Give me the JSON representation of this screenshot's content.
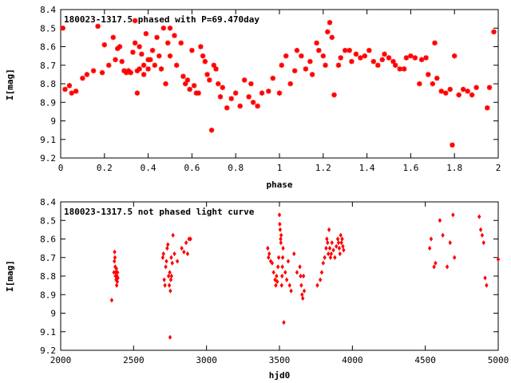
{
  "chart_data": [
    {
      "type": "scatter",
      "title": "180023-1317.5 phased with P=69.470day",
      "xlabel": "phase",
      "ylabel": "I[mag]",
      "xlim": [
        0,
        2
      ],
      "ylim": [
        8.4,
        9.2
      ],
      "y_inverted": true,
      "xticks": [
        0,
        0.2,
        0.4,
        0.6,
        0.8,
        1,
        1.2,
        1.4,
        1.6,
        1.8,
        2
      ],
      "xtick_labels": [
        "0",
        "0.2",
        "0.4",
        "0.6",
        "0.8",
        "1",
        "1.2",
        "1.4",
        "1.6",
        "1.8",
        "2"
      ],
      "yticks": [
        8.4,
        8.5,
        8.6,
        8.7,
        8.8,
        8.9,
        9.0,
        9.1,
        9.2
      ],
      "ytick_labels": [
        "8.4",
        "8.5",
        "8.6",
        "8.7",
        "8.8",
        "8.9",
        "9",
        "9.1",
        "9.2"
      ],
      "grid": false,
      "legend": "none",
      "marker_color": "#ff0000",
      "x": [
        0.01,
        0.02,
        0.04,
        0.05,
        0.07,
        0.1,
        0.12,
        0.15,
        0.17,
        0.19,
        0.2,
        0.22,
        0.24,
        0.25,
        0.26,
        0.27,
        0.28,
        0.29,
        0.3,
        0.31,
        0.32,
        0.33,
        0.34,
        0.34,
        0.35,
        0.35,
        0.36,
        0.36,
        0.37,
        0.38,
        0.38,
        0.39,
        0.4,
        0.4,
        0.41,
        0.42,
        0.43,
        0.44,
        0.45,
        0.46,
        0.47,
        0.48,
        0.49,
        0.5,
        0.5,
        0.52,
        0.53,
        0.55,
        0.56,
        0.57,
        0.58,
        0.59,
        0.6,
        0.61,
        0.62,
        0.63,
        0.64,
        0.65,
        0.66,
        0.67,
        0.68,
        0.69,
        0.7,
        0.71,
        0.72,
        0.73,
        0.74,
        0.76,
        0.78,
        0.8,
        0.82,
        0.84,
        0.86,
        0.87,
        0.88,
        0.9,
        0.92,
        0.95,
        0.97,
        1.0,
        1.01,
        1.03,
        1.05,
        1.07,
        1.08,
        1.1,
        1.12,
        1.14,
        1.15,
        1.17,
        1.18,
        1.2,
        1.21,
        1.22,
        1.23,
        1.24,
        1.25,
        1.27,
        1.28,
        1.3,
        1.32,
        1.33,
        1.35,
        1.37,
        1.39,
        1.41,
        1.43,
        1.45,
        1.47,
        1.48,
        1.5,
        1.52,
        1.53,
        1.55,
        1.57,
        1.58,
        1.6,
        1.62,
        1.64,
        1.65,
        1.67,
        1.68,
        1.7,
        1.71,
        1.72,
        1.74,
        1.76,
        1.78,
        1.79,
        1.8,
        1.82,
        1.84,
        1.86,
        1.88,
        1.9,
        1.95,
        1.96,
        1.98
      ],
      "y": [
        8.5,
        8.83,
        8.81,
        8.85,
        8.84,
        8.77,
        8.75,
        8.73,
        8.49,
        8.74,
        8.59,
        8.7,
        8.55,
        8.67,
        8.61,
        8.6,
        8.68,
        8.73,
        8.74,
        8.73,
        8.74,
        8.63,
        8.46,
        8.58,
        8.73,
        8.85,
        8.72,
        8.6,
        8.64,
        8.7,
        8.75,
        8.53,
        8.67,
        8.72,
        8.67,
        8.62,
        8.7,
        8.55,
        8.65,
        8.72,
        8.5,
        8.8,
        8.58,
        8.5,
        8.65,
        8.54,
        8.7,
        8.58,
        8.76,
        8.8,
        8.78,
        8.83,
        8.62,
        8.81,
        8.85,
        8.85,
        8.6,
        8.65,
        8.68,
        8.75,
        8.78,
        9.05,
        8.7,
        8.72,
        8.8,
        8.87,
        8.82,
        8.93,
        8.88,
        8.85,
        8.92,
        8.78,
        8.87,
        8.8,
        8.9,
        8.92,
        8.85,
        8.84,
        8.77,
        8.85,
        8.7,
        8.65,
        8.8,
        8.73,
        8.62,
        8.65,
        8.72,
        8.68,
        8.75,
        8.58,
        8.62,
        8.65,
        8.7,
        8.52,
        8.47,
        8.55,
        8.86,
        8.7,
        8.66,
        8.62,
        8.62,
        8.68,
        8.64,
        8.66,
        8.65,
        8.62,
        8.68,
        8.7,
        8.67,
        8.64,
        8.66,
        8.68,
        8.7,
        8.72,
        8.72,
        8.66,
        8.65,
        8.66,
        8.8,
        8.67,
        8.66,
        8.75,
        8.8,
        8.58,
        8.77,
        8.84,
        8.85,
        8.83,
        9.13,
        8.65,
        8.86,
        8.83,
        8.84,
        8.86,
        8.82,
        8.93,
        8.82,
        8.52
      ]
    },
    {
      "type": "scatter",
      "title": "180023-1317.5 not phased light curve",
      "xlabel": "hjd0",
      "ylabel": "I[mag]",
      "xlim": [
        2000,
        5000
      ],
      "ylim": [
        8.4,
        9.2
      ],
      "y_inverted": true,
      "xticks": [
        2000,
        2500,
        3000,
        3500,
        4000,
        4500,
        5000
      ],
      "xtick_labels": [
        "2000",
        "2500",
        "3000",
        "3500",
        "4000",
        "4500",
        "5000"
      ],
      "yticks": [
        8.4,
        8.5,
        8.6,
        8.7,
        8.8,
        8.9,
        9.0,
        9.1,
        9.2
      ],
      "ytick_labels": [
        "8.4",
        "8.5",
        "8.6",
        "8.7",
        "8.8",
        "8.9",
        "9",
        "9.1",
        "9.2"
      ],
      "grid": false,
      "legend": "none",
      "marker_color": "#ff0000",
      "x": [
        2350,
        2365,
        2368,
        2370,
        2372,
        2374,
        2376,
        2378,
        2380,
        2382,
        2384,
        2386,
        2388,
        2390,
        2392,
        2700,
        2705,
        2710,
        2715,
        2720,
        2725,
        2730,
        2735,
        2740,
        2745,
        2748,
        2750,
        2752,
        2755,
        2758,
        2760,
        2765,
        2770,
        2780,
        2800,
        2830,
        2845,
        2860,
        2870,
        2880,
        2890,
        3420,
        3425,
        3430,
        3440,
        3450,
        3460,
        3470,
        3475,
        3480,
        3485,
        3490,
        3495,
        3500,
        3502,
        3505,
        3508,
        3510,
        3512,
        3515,
        3518,
        3520,
        3522,
        3525,
        3530,
        3540,
        3550,
        3560,
        3570,
        3580,
        3600,
        3620,
        3640,
        3645,
        3650,
        3655,
        3660,
        3665,
        3670,
        3760,
        3780,
        3790,
        3800,
        3810,
        3820,
        3825,
        3830,
        3835,
        3840,
        3845,
        3850,
        3855,
        3860,
        3870,
        3880,
        3890,
        3900,
        3905,
        3910,
        3915,
        3920,
        3925,
        3930,
        3935,
        3940,
        4530,
        4540,
        4560,
        4570,
        4600,
        4620,
        4650,
        4670,
        4690,
        4700,
        4870,
        4880,
        4890,
        4900,
        4910,
        4920,
        5000
      ],
      "y": [
        8.93,
        8.78,
        8.72,
        8.67,
        8.7,
        8.75,
        8.8,
        8.78,
        8.82,
        8.76,
        8.85,
        8.8,
        8.83,
        8.78,
        8.81,
        8.7,
        8.68,
        8.82,
        8.85,
        8.75,
        8.72,
        8.65,
        8.63,
        8.8,
        8.85,
        8.78,
        9.13,
        8.88,
        8.82,
        8.7,
        8.8,
        8.73,
        8.58,
        8.68,
        8.72,
        8.65,
        8.67,
        8.62,
        8.68,
        8.6,
        8.6,
        8.65,
        8.7,
        8.68,
        8.72,
        8.73,
        8.78,
        8.82,
        8.85,
        8.8,
        8.83,
        8.75,
        8.7,
        8.47,
        8.52,
        8.55,
        8.6,
        8.62,
        8.58,
        8.85,
        8.8,
        8.75,
        8.7,
        8.65,
        9.05,
        8.78,
        8.82,
        8.72,
        8.85,
        8.88,
        8.68,
        8.78,
        8.75,
        8.8,
        8.85,
        8.9,
        8.92,
        8.8,
        8.88,
        8.85,
        8.82,
        8.78,
        8.73,
        8.7,
        8.65,
        8.6,
        8.62,
        8.68,
        8.55,
        8.65,
        8.7,
        8.68,
        8.62,
        8.66,
        8.7,
        8.64,
        8.6,
        8.62,
        8.65,
        8.68,
        8.58,
        8.62,
        8.6,
        8.64,
        8.66,
        8.65,
        8.6,
        8.75,
        8.73,
        8.5,
        8.58,
        8.75,
        8.62,
        8.47,
        8.7,
        8.48,
        8.55,
        8.58,
        8.62,
        8.81,
        8.85,
        8.71
      ]
    }
  ]
}
